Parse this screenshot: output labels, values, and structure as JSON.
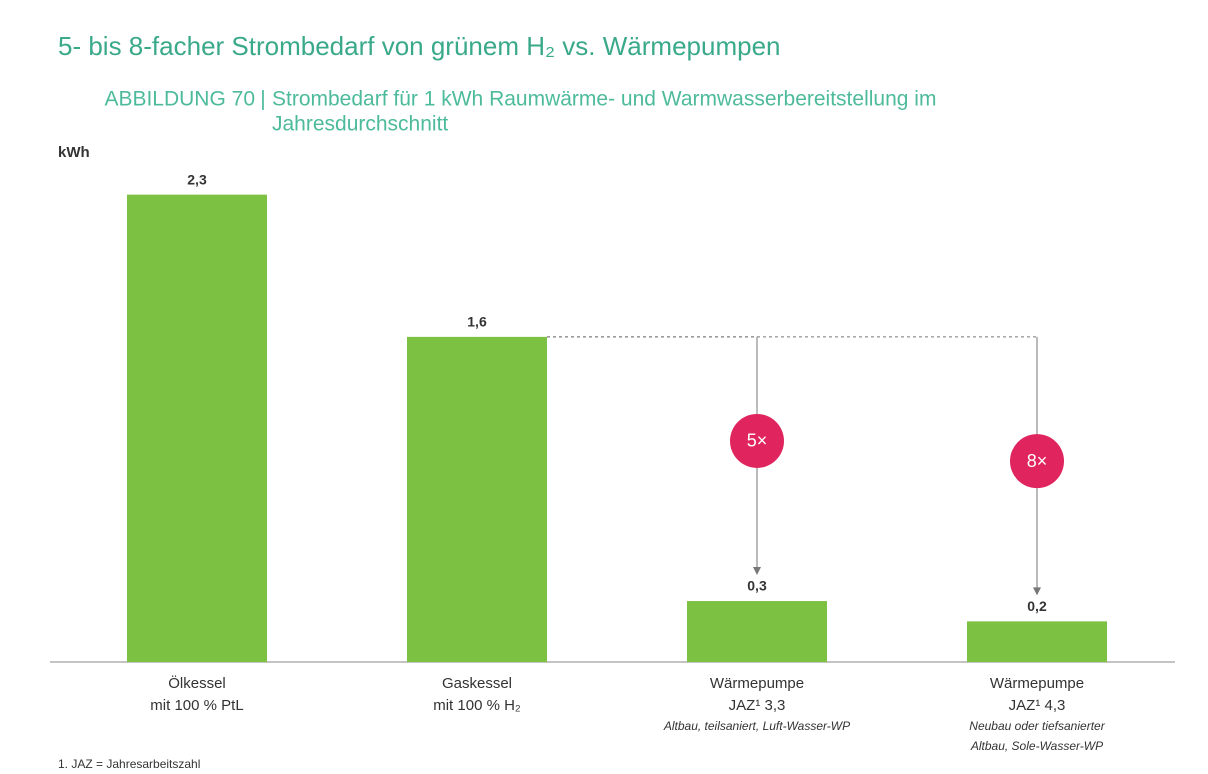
{
  "chart_data": {
    "type": "bar",
    "title": "5- bis 8-facher Strombedarf von grünem H₂ vs. Wärmepumpen",
    "subtitle_label": "ABBILDUNG 70",
    "subtitle": [
      "Strombedarf für 1 kWh Raumwärme- und Warmwasserbereitstellung im",
      "Jahresdurchschnitt"
    ],
    "ylabel": "kWh",
    "categories": [
      "Ölkessel",
      "Gaskessel",
      "Wärmepumpe",
      "Wärmepumpe"
    ],
    "category_sublabels": [
      "mit 100 % PtL",
      "mit 100 % H₂",
      "JAZ¹ 3,3",
      "JAZ¹ 4,3"
    ],
    "category_notes": [
      null,
      null,
      [
        "Altbau, teilsaniert, Luft-Wasser-WP"
      ],
      [
        "Neubau oder tiefsanierter",
        "Altbau, Sole-Wasser-WP"
      ]
    ],
    "values": [
      2.3,
      1.6,
      0.3,
      0.2
    ],
    "value_labels": [
      "2,3",
      "1,6",
      "0,3",
      "0,2"
    ],
    "color": "#7dc143",
    "ylim": [
      0,
      2.5
    ],
    "annotations": [
      {
        "text": "5×",
        "from": 1,
        "to": 2
      },
      {
        "text": "8×",
        "from": 1,
        "to": 3
      }
    ],
    "annotation_color": "#e0245e",
    "footnote": "1. JAZ = Jahresarbeitszahl"
  }
}
